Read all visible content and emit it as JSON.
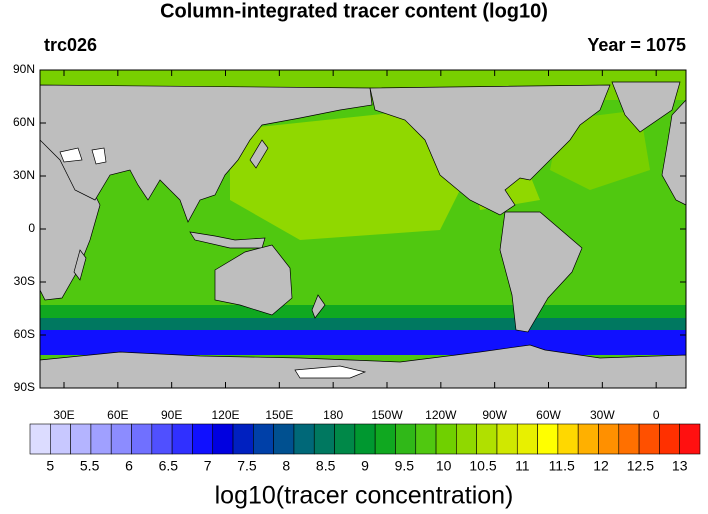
{
  "title": "Column-integrated tracer content (log10)",
  "left_label": "trc026",
  "right_label": "Year = 1075",
  "lat_labels": [
    "90N",
    "60N",
    "30N",
    "0",
    "30S",
    "60S",
    "90S"
  ],
  "lon_labels": [
    "30E",
    "60E",
    "90E",
    "120E",
    "150E",
    "180",
    "150W",
    "120W",
    "90W",
    "60W",
    "30W",
    "0"
  ],
  "colorbar": {
    "title": "log10(tracer concentration)",
    "ticks": [
      5,
      5.5,
      6,
      6.5,
      7,
      7.5,
      8,
      8.5,
      9,
      9.5,
      10,
      10.5,
      11,
      11.5,
      12,
      12.5,
      13
    ],
    "colors": [
      "#dcdcff",
      "#c8c8ff",
      "#b4b4ff",
      "#a0a0ff",
      "#8c8cff",
      "#7070ff",
      "#5050ff",
      "#3030ff",
      "#1010ff",
      "#0000e0",
      "#0020c0",
      "#0040a8",
      "#005090",
      "#006878",
      "#007860",
      "#008848",
      "#009830",
      "#10a820",
      "#30b818",
      "#50c810",
      "#70d000",
      "#90d800",
      "#b0e000",
      "#d0e800",
      "#e8f000",
      "#ffff00",
      "#ffd800",
      "#ffb000",
      "#ff9000",
      "#ff7000",
      "#ff5000",
      "#ff3000",
      "#ff1010"
    ]
  }
}
